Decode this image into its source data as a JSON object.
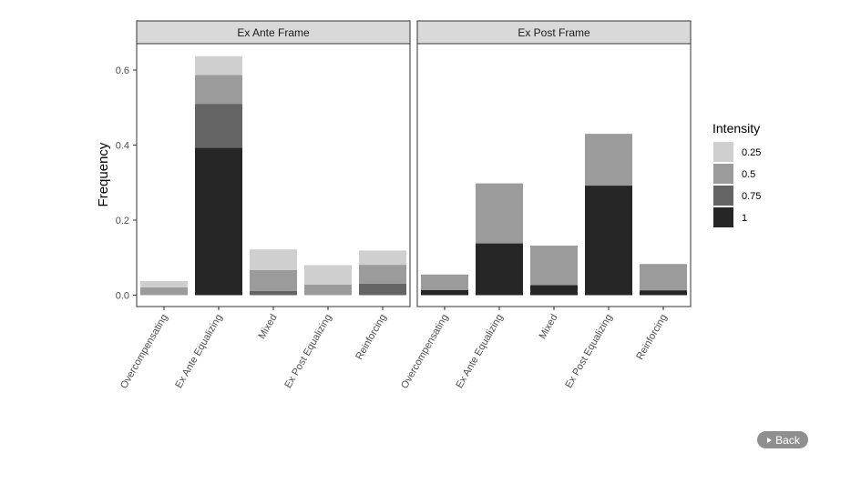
{
  "back_button": {
    "label": "Back"
  },
  "chart_data": {
    "type": "bar",
    "stacked": true,
    "ylabel": "Frequency",
    "ylim": [
      0,
      0.7
    ],
    "yticks": [
      0.0,
      0.2,
      0.4,
      0.6
    ],
    "ytick_labels": [
      "0.0",
      "0.2",
      "0.4",
      "0.6"
    ],
    "grid": false,
    "categories": [
      "Overcompensating",
      "Ex Ante Equalizing",
      "Mixed",
      "Ex Post Equalizing",
      "Reinforcing"
    ],
    "legend": {
      "title": "Intensity",
      "placement": "right",
      "entries": [
        {
          "label": "0.25",
          "color": "#cfcfcf"
        },
        {
          "label": "0.5",
          "color": "#9b9b9b"
        },
        {
          "label": "0.75",
          "color": "#646464"
        },
        {
          "label": "1",
          "color": "#262626"
        }
      ]
    },
    "panels": [
      {
        "title": "Ex Ante Frame",
        "series": [
          {
            "name": "1",
            "values": [
              0.0,
              0.393,
              0.0,
              0.0,
              0.0
            ]
          },
          {
            "name": "0.75",
            "values": [
              0.0,
              0.117,
              0.011,
              0.0,
              0.031
            ]
          },
          {
            "name": "0.5",
            "values": [
              0.021,
              0.077,
              0.056,
              0.028,
              0.05
            ]
          },
          {
            "name": "0.25",
            "values": [
              0.017,
              0.05,
              0.055,
              0.052,
              0.038
            ]
          }
        ]
      },
      {
        "title": "Ex Post Frame",
        "series": [
          {
            "name": "1",
            "values": [
              0.014,
              0.138,
              0.027,
              0.292,
              0.013
            ]
          },
          {
            "name": "0.75",
            "values": [
              0.0,
              0.0,
              0.0,
              0.0,
              0.0
            ]
          },
          {
            "name": "0.5",
            "values": [
              0.041,
              0.16,
              0.105,
              0.138,
              0.07
            ]
          },
          {
            "name": "0.25",
            "values": [
              0.0,
              0.0,
              0.0,
              0.0,
              0.0
            ]
          }
        ]
      }
    ]
  }
}
